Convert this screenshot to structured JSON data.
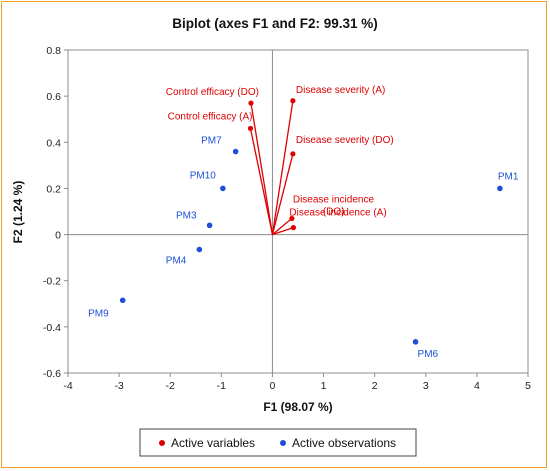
{
  "chart_data": {
    "type": "scatter",
    "title": "Biplot (axes F1 and F2: 99.31 %)",
    "xlabel": "F1 (98.07 %)",
    "ylabel": "F2 (1.24 %)",
    "xlim": [
      -4,
      5
    ],
    "ylim": [
      -0.6,
      0.8
    ],
    "xticks": [
      "-4",
      "-3",
      "-2",
      "-1",
      "0",
      "1",
      "2",
      "3",
      "4",
      "5"
    ],
    "yticks": [
      "-0.6",
      "-0.4",
      "-0.2",
      "0",
      "0.2",
      "0.4",
      "0.6",
      "0.8"
    ],
    "grid": false,
    "legend_position": "bottom",
    "series": [
      {
        "name": "Active variables",
        "color": "#e00000",
        "points": [
          {
            "label": "Disease severity (A)",
            "x": 0.4,
            "y": 0.58
          },
          {
            "label": "Control efficacy (DO)",
            "x": -0.42,
            "y": 0.57
          },
          {
            "label": "Control efficacy (A)",
            "x": -0.43,
            "y": 0.46
          },
          {
            "label": "Disease severity (DO)",
            "x": 0.4,
            "y": 0.35
          },
          {
            "label": "Disease incidence (DO)",
            "x": 0.38,
            "y": 0.07
          },
          {
            "label": "Disease incidence (A)",
            "x": 0.41,
            "y": 0.03
          }
        ]
      },
      {
        "name": "Active observations",
        "color": "#1f4fd8",
        "points": [
          {
            "label": "PM1",
            "x": 4.45,
            "y": 0.2
          },
          {
            "label": "PM7",
            "x": -0.72,
            "y": 0.36
          },
          {
            "label": "PM10",
            "x": -0.97,
            "y": 0.2
          },
          {
            "label": "PM3",
            "x": -1.23,
            "y": 0.04
          },
          {
            "label": "PM4",
            "x": -1.43,
            "y": -0.065
          },
          {
            "label": "PM9",
            "x": -2.93,
            "y": -0.285
          },
          {
            "label": "PM6",
            "x": 2.8,
            "y": -0.465
          }
        ]
      }
    ]
  }
}
